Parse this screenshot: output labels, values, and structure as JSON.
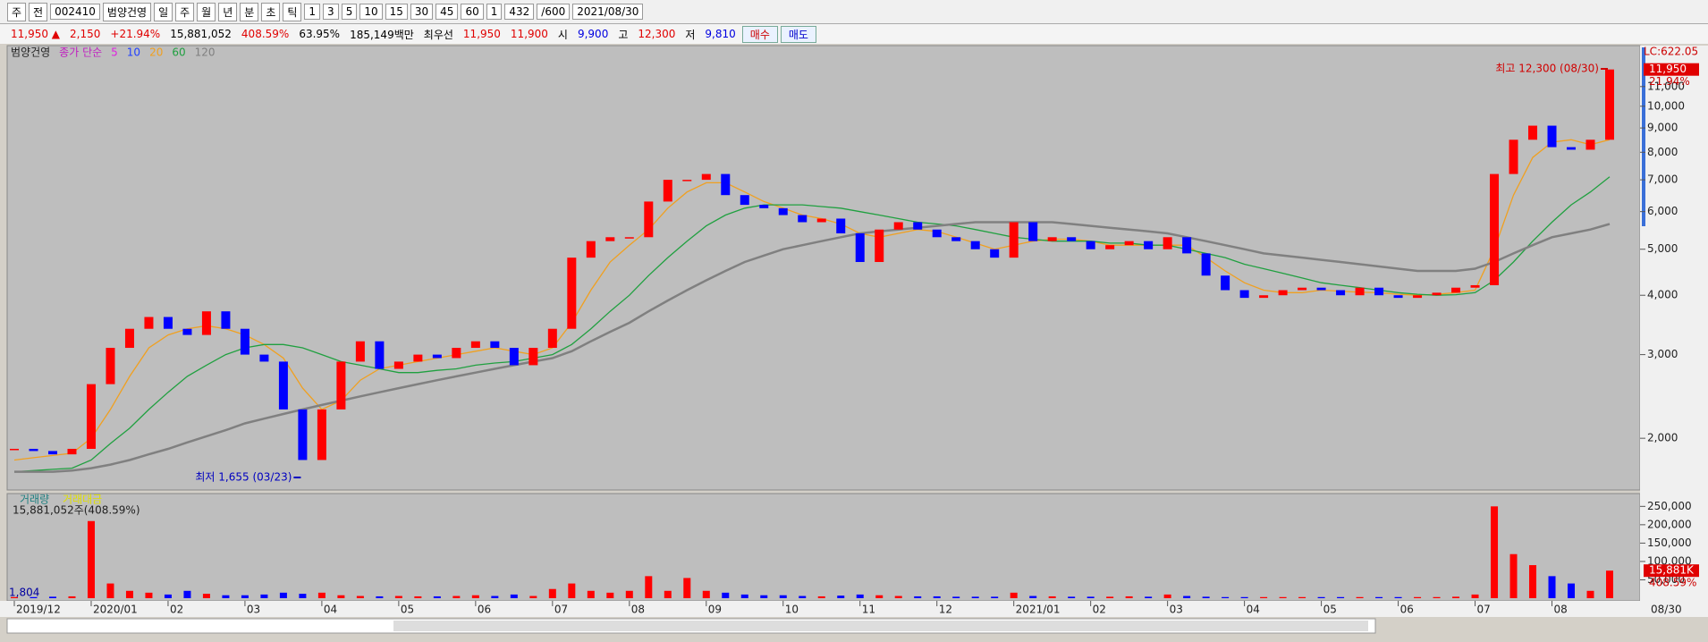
{
  "toolbar": {
    "items": [
      "주",
      "전",
      "002410",
      "범양건영",
      "일",
      "주",
      "월",
      "년",
      "분",
      "초",
      "틱",
      "1",
      "3",
      "5",
      "10",
      "15",
      "30",
      "45",
      "60",
      "1",
      "432",
      "/600",
      "2021/08/30"
    ]
  },
  "quote": {
    "items": [
      {
        "text": "11,950 ▲",
        "color": "#e00000"
      },
      {
        "text": "2,150",
        "color": "#e00000"
      },
      {
        "text": "+21.94%",
        "color": "#e00000"
      },
      {
        "text": "15,881,052",
        "color": "#000000"
      },
      {
        "text": "408.59%",
        "color": "#e00000"
      },
      {
        "text": "63.95%",
        "color": "#000000"
      },
      {
        "text": "185,149백만",
        "color": "#000000"
      },
      {
        "text": "최우선",
        "color": "#000000"
      },
      {
        "text": "11,950",
        "color": "#e00000"
      },
      {
        "text": "11,900",
        "color": "#e00000"
      },
      {
        "text": "시",
        "color": "#000000"
      },
      {
        "text": "9,900",
        "color": "#0000e0"
      },
      {
        "text": "고",
        "color": "#000000"
      },
      {
        "text": "12,300",
        "color": "#e00000"
      },
      {
        "text": "저",
        "color": "#000000"
      },
      {
        "text": "9,810",
        "color": "#0000e0"
      }
    ],
    "buy": "매수",
    "sell": "매도"
  },
  "chart_data": {
    "type": "candlestick",
    "name": "범양건영",
    "legend_title": "종가 단순",
    "up_color": "#ff0000",
    "down_color": "#0000ff",
    "log": true,
    "categories": [
      "2019/12",
      null,
      null,
      null,
      "2020/01",
      null,
      null,
      null,
      "02",
      null,
      null,
      null,
      "03",
      null,
      null,
      null,
      "04",
      null,
      null,
      null,
      "05",
      null,
      null,
      null,
      "06",
      null,
      null,
      null,
      "07",
      null,
      null,
      null,
      "08",
      null,
      null,
      null,
      "09",
      null,
      null,
      null,
      "10",
      null,
      null,
      null,
      "11",
      null,
      null,
      null,
      "12",
      null,
      null,
      null,
      "2021/01",
      null,
      null,
      null,
      "02",
      null,
      null,
      null,
      "03",
      null,
      null,
      null,
      "04",
      null,
      null,
      null,
      "05",
      null,
      null,
      null,
      "06",
      null,
      null,
      null,
      "07",
      null,
      null,
      null,
      "08",
      null,
      null,
      null
    ],
    "values": [
      1900,
      1880,
      1850,
      1900,
      2600,
      3100,
      3400,
      3600,
      3400,
      3300,
      3700,
      3400,
      3000,
      2900,
      2300,
      1800,
      2300,
      2900,
      3200,
      2800,
      2900,
      3000,
      2950,
      3100,
      3200,
      3100,
      2850,
      3100,
      3400,
      4800,
      5200,
      5300,
      5300,
      6300,
      7000,
      7000,
      7200,
      6500,
      6200,
      6100,
      5900,
      5700,
      5800,
      5400,
      4700,
      5500,
      5700,
      5500,
      5300,
      5200,
      5000,
      4800,
      5700,
      5200,
      5300,
      5200,
      5000,
      5100,
      5200,
      5000,
      5300,
      4900,
      4400,
      4100,
      3950,
      4000,
      4100,
      4150,
      4100,
      4000,
      4150,
      4000,
      3950,
      4000,
      4050,
      4150,
      4200,
      7200,
      8500,
      9100,
      8200,
      8100,
      8500,
      11950
    ],
    "ma": [
      {
        "name": "5",
        "color": "#e020e0"
      },
      {
        "name": "10",
        "color": "#2040ff"
      },
      {
        "name": "20",
        "color": "#f0a020",
        "values": [
          1800,
          1820,
          1840,
          1860,
          2000,
          2300,
          2700,
          3100,
          3300,
          3400,
          3450,
          3400,
          3300,
          3150,
          2950,
          2550,
          2300,
          2400,
          2650,
          2800,
          2850,
          2900,
          2950,
          3000,
          3050,
          3100,
          3050,
          3000,
          3100,
          3500,
          4100,
          4700,
          5100,
          5500,
          6100,
          6600,
          6900,
          6900,
          6600,
          6300,
          6100,
          5900,
          5800,
          5650,
          5400,
          5300,
          5400,
          5500,
          5450,
          5300,
          5150,
          5000,
          5100,
          5200,
          5250,
          5250,
          5200,
          5100,
          5100,
          5100,
          5100,
          5100,
          4800,
          4500,
          4250,
          4100,
          4050,
          4050,
          4100,
          4080,
          4060,
          4050,
          4020,
          4000,
          4020,
          4050,
          4100,
          5000,
          6500,
          7800,
          8400,
          8500,
          8300,
          8500
        ]
      },
      {
        "name": "60",
        "color": "#20a040",
        "values": [
          1700,
          1710,
          1720,
          1730,
          1800,
          1950,
          2100,
          2300,
          2500,
          2700,
          2850,
          3000,
          3100,
          3150,
          3150,
          3100,
          3000,
          2900,
          2850,
          2800,
          2750,
          2750,
          2780,
          2800,
          2850,
          2880,
          2900,
          2950,
          3000,
          3150,
          3400,
          3700,
          4000,
          4400,
          4800,
          5200,
          5600,
          5900,
          6100,
          6200,
          6200,
          6200,
          6150,
          6100,
          6000,
          5900,
          5800,
          5700,
          5650,
          5600,
          5500,
          5400,
          5300,
          5250,
          5200,
          5200,
          5200,
          5150,
          5150,
          5100,
          5100,
          5000,
          4900,
          4800,
          4650,
          4550,
          4450,
          4350,
          4250,
          4200,
          4150,
          4100,
          4050,
          4020,
          4000,
          4010,
          4050,
          4300,
          4700,
          5200,
          5700,
          6200,
          6600,
          7100
        ]
      },
      {
        "name": "120",
        "color": "#808080",
        "values": [
          1700,
          1700,
          1700,
          1710,
          1730,
          1760,
          1800,
          1850,
          1900,
          1960,
          2020,
          2080,
          2150,
          2200,
          2250,
          2300,
          2350,
          2400,
          2450,
          2500,
          2550,
          2600,
          2650,
          2700,
          2750,
          2800,
          2850,
          2900,
          2950,
          3050,
          3200,
          3350,
          3500,
          3700,
          3900,
          4100,
          4300,
          4500,
          4700,
          4850,
          5000,
          5100,
          5200,
          5300,
          5400,
          5450,
          5500,
          5550,
          5600,
          5650,
          5700,
          5700,
          5700,
          5700,
          5700,
          5650,
          5600,
          5550,
          5500,
          5450,
          5400,
          5300,
          5200,
          5100,
          5000,
          4900,
          4850,
          4800,
          4750,
          4700,
          4650,
          4600,
          4550,
          4500,
          4500,
          4500,
          4550,
          4700,
          4900,
          5100,
          5300,
          5400,
          5500,
          5650
        ]
      }
    ],
    "ylim": [
      1570,
      13300
    ],
    "yticks": [
      {
        "value": 2000,
        "label": "2,000"
      },
      {
        "value": 3000,
        "label": "3,000"
      },
      {
        "value": 4000,
        "label": "4,000"
      },
      {
        "value": 5000,
        "label": "5,000"
      },
      {
        "value": 6000,
        "label": "6,000"
      },
      {
        "value": 7000,
        "label": "7,000"
      },
      {
        "value": 8000,
        "label": "8,000"
      },
      {
        "value": 9000,
        "label": "9,000"
      },
      {
        "value": 10000,
        "label": "10,000"
      },
      {
        "value": 11000,
        "label": "11,000"
      }
    ],
    "lc_label": "LC:622.05",
    "last_label": "11,950",
    "last_pct": "21.94%",
    "last_date": "08/30",
    "high_label": "최고 12,300 (08/30)",
    "low_label": "최저 1,655 (03/23)",
    "volume": {
      "title": "거래량",
      "title2": "거래대금",
      "summary": "15,881,052주(408.59%)",
      "base_label": "1,804",
      "last_label": "15,881K",
      "last_pct": "408.59%",
      "values": [
        3000,
        3000,
        4000,
        5000,
        210000,
        40000,
        20000,
        15000,
        10000,
        20000,
        12000,
        8000,
        8000,
        10000,
        15000,
        12000,
        15000,
        8000,
        6000,
        5000,
        6000,
        5000,
        5000,
        6000,
        8000,
        6000,
        10000,
        6000,
        25000,
        40000,
        20000,
        15000,
        20000,
        60000,
        20000,
        55000,
        20000,
        15000,
        10000,
        8000,
        8000,
        6000,
        5000,
        7000,
        10000,
        8000,
        6000,
        5000,
        5000,
        4000,
        4000,
        4000,
        15000,
        6000,
        5000,
        4000,
        4000,
        4000,
        5000,
        4000,
        10000,
        6000,
        4000,
        3000,
        3000,
        3000,
        3000,
        3000,
        3000,
        3000,
        3000,
        3000,
        3000,
        3000,
        3000,
        4000,
        10000,
        250000,
        120000,
        90000,
        60000,
        40000,
        20000,
        75000
      ],
      "ylim": [
        0,
        280000
      ],
      "yticks": [
        {
          "value": 50000,
          "label": "50,000"
        },
        {
          "value": 100000,
          "label": "100,000"
        },
        {
          "value": 150000,
          "label": "150,000"
        },
        {
          "value": 200000,
          "label": "200,000"
        },
        {
          "value": 250000,
          "label": "250,000"
        }
      ]
    }
  }
}
